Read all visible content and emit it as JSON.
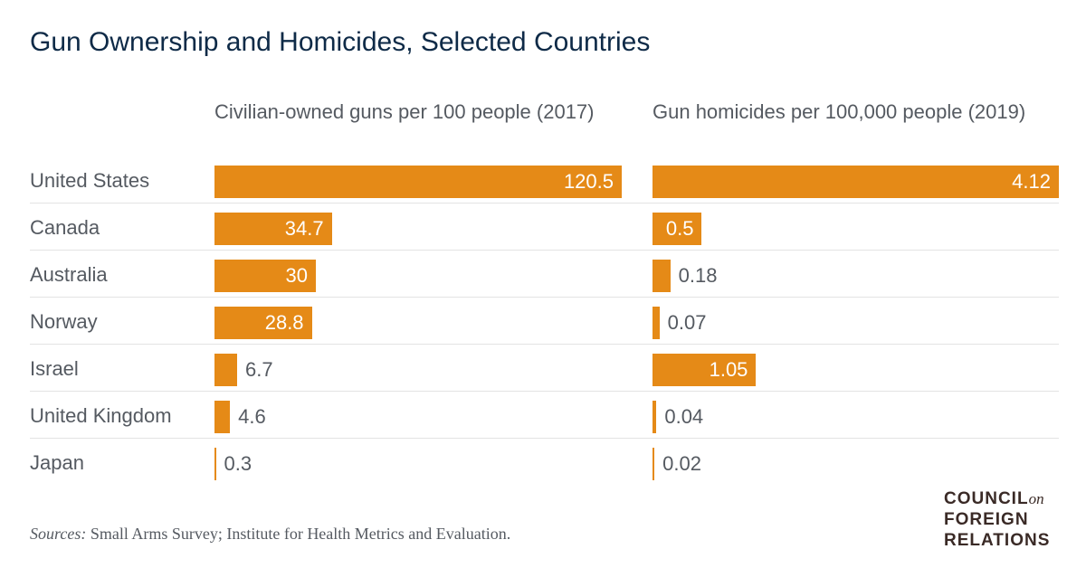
{
  "title": "Gun Ownership and Homicides, Selected Countries",
  "chart_data": [
    {
      "type": "bar",
      "orientation": "horizontal",
      "title": "Civilian-owned guns per 100 people (2017)",
      "categories": [
        "United States",
        "Canada",
        "Australia",
        "Norway",
        "Israel",
        "United Kingdom",
        "Japan"
      ],
      "values": [
        120.5,
        34.7,
        30,
        28.8,
        6.7,
        4.6,
        0.3
      ],
      "value_labels": [
        "120.5",
        "34.7",
        "30",
        "28.8",
        "6.7",
        "4.6",
        "0.3"
      ],
      "color": "#e58a17",
      "grid": false
    },
    {
      "type": "bar",
      "orientation": "horizontal",
      "title": "Gun homicides per 100,000 people (2019)",
      "categories": [
        "United States",
        "Canada",
        "Australia",
        "Norway",
        "Israel",
        "United Kingdom",
        "Japan"
      ],
      "values": [
        4.12,
        0.5,
        0.18,
        0.07,
        1.05,
        0.04,
        0.02
      ],
      "value_labels": [
        "4.12",
        "0.5",
        "0.18",
        "0.07",
        "1.05",
        "0.04",
        "0.02"
      ],
      "color": "#e58a17",
      "grid": false
    }
  ],
  "source": {
    "label": "Sources:",
    "text": " Small Arms Survey; Institute for Health Metrics and Evaluation."
  },
  "logo": {
    "line1": "COUNCIL",
    "on": "on",
    "line2": "FOREIGN",
    "line3": "RELATIONS"
  }
}
